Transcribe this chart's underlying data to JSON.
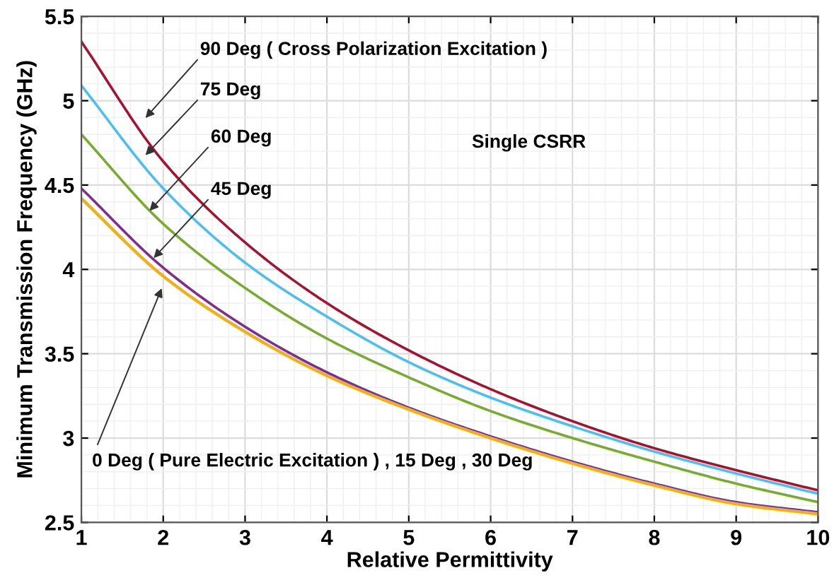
{
  "chart_data": {
    "type": "line",
    "xlabel": "Relative Permittivity",
    "ylabel": "Minimum Transmission Frequency (GHz)",
    "x": [
      1,
      2,
      3,
      4,
      5,
      6,
      7,
      8,
      9,
      10
    ],
    "series": [
      {
        "color": "#a2142f",
        "values": [
          5.35,
          4.64,
          4.16,
          3.8,
          3.52,
          3.29,
          3.1,
          2.94,
          2.81,
          2.69
        ]
      },
      {
        "color": "#4dbeee",
        "values": [
          5.09,
          4.48,
          4.04,
          3.72,
          3.45,
          3.24,
          3.07,
          2.92,
          2.79,
          2.67
        ]
      },
      {
        "color": "#77ac30",
        "values": [
          4.8,
          4.27,
          3.89,
          3.59,
          3.36,
          3.16,
          3.0,
          2.86,
          2.73,
          2.62
        ]
      },
      {
        "color": "#7e2f8e",
        "values": [
          4.48,
          4.01,
          3.66,
          3.39,
          3.18,
          3.01,
          2.86,
          2.73,
          2.62,
          2.56
        ]
      },
      {
        "color": "#edb120",
        "values": [
          4.42,
          3.96,
          3.63,
          3.37,
          3.17,
          3.0,
          2.85,
          2.72,
          2.61,
          2.55
        ]
      }
    ],
    "xlim": [
      1,
      10
    ],
    "ylim": [
      2.5,
      5.5
    ],
    "xticks": [
      1,
      2,
      3,
      4,
      5,
      6,
      7,
      8,
      9,
      10
    ],
    "yticks": [
      2.5,
      3,
      3.5,
      4,
      4.5,
      5,
      5.5
    ],
    "grid": true,
    "line_style": "solid",
    "marker": "none",
    "annotations": [
      {
        "text": "90 Deg ( Cross Polarization Excitation )",
        "x": 1.75,
        "y": 4.88
      },
      {
        "text": "75 Deg",
        "x": 1.75,
        "y": 4.66
      },
      {
        "text": "60 Deg",
        "x": 1.8,
        "y": 4.33
      },
      {
        "text": "45 Deg",
        "x": 1.85,
        "y": 4.05
      },
      {
        "text": "0 Deg ( Pure Electric Excitation ) , 15 Deg , 30 Deg",
        "x": 2.0,
        "y": 3.91
      },
      "Single CSRR"
    ]
  }
}
